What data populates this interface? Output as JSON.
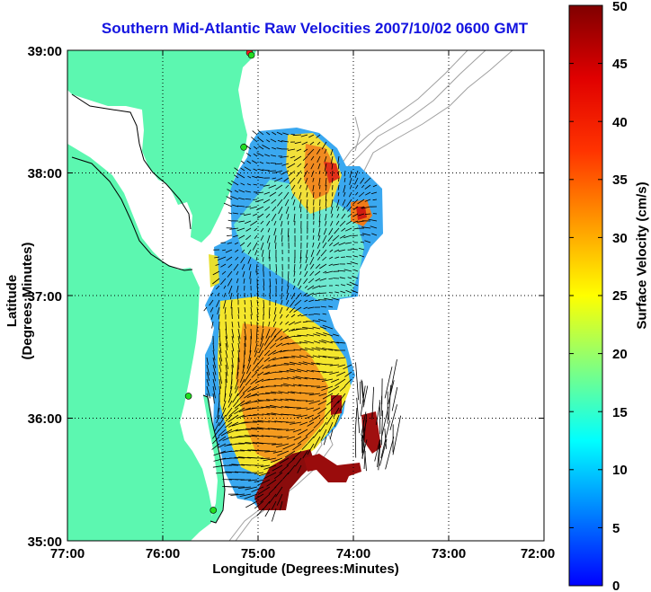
{
  "title": "Southern Mid-Atlantic Raw Velocities 2007/10/02 0600 GMT",
  "xlabel": "Longitude (Degrees:Minutes)",
  "ylabel": "Latitude (Degrees:Minutes)",
  "colorbar": {
    "label": "Surface Velocity (cm/s)",
    "min": 0,
    "max": 50,
    "ticks": [
      "0",
      "5",
      "10",
      "15",
      "20",
      "25",
      "30",
      "35",
      "40",
      "45",
      "50"
    ]
  },
  "axes": {
    "lon_range": [
      -77,
      -72
    ],
    "lat_range": [
      35,
      39
    ],
    "x_ticks": [
      "77:00",
      "76:00",
      "75:00",
      "74:00",
      "73:00",
      "72:00"
    ],
    "y_ticks": [
      "39:00",
      "38:00",
      "37:00",
      "36:00",
      "35:00"
    ],
    "grid": "dotted"
  },
  "colors": {
    "land": "#5cf7b0",
    "ocean": "#ffffff",
    "title": "#1414e0",
    "bathymetry": "#a0a0a0",
    "vectors": "#000000"
  },
  "stations": [
    {
      "lon": -75.09,
      "lat": 38.98,
      "color": "#ff2020"
    },
    {
      "lon": -75.07,
      "lat": 38.96,
      "color": "#22dd22"
    },
    {
      "lon": -75.15,
      "lat": 38.21,
      "color": "#22dd22"
    },
    {
      "lon": -75.73,
      "lat": 36.18,
      "color": "#22dd22"
    },
    {
      "lon": -75.47,
      "lat": 35.25,
      "color": "#22dd22"
    }
  ]
}
